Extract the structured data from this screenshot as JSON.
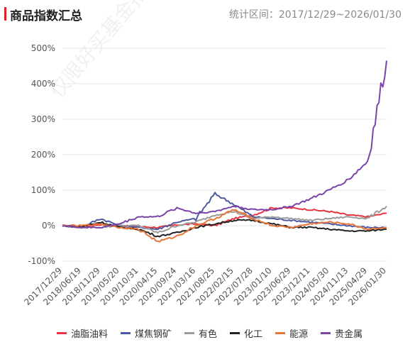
{
  "header": {
    "title": "商品指数汇总",
    "range": "统计区间：2017/12/29~2026/01/30"
  },
  "watermark": "仅限好买基金指定接收人使",
  "chart_data": {
    "type": "line",
    "ylim": [
      -100,
      500
    ],
    "yticks": [
      -100,
      0,
      100,
      200,
      300,
      400,
      500
    ],
    "ytick_labels": [
      "-100%",
      "0%",
      "100%",
      "200%",
      "300%",
      "400%",
      "500%"
    ],
    "xtick_labels": [
      "2017/12/29",
      "2018/06/19",
      "2018/11/29",
      "2019/05/20",
      "2019/10/31",
      "2020/04/15",
      "2020/09/24",
      "2021/03/16",
      "2021/08/25",
      "2022/02/15",
      "2022/07/28",
      "2023/01/10",
      "2023/06/29",
      "2023/12/11",
      "2024/05/30",
      "2024/11/13",
      "2025/04/29",
      "2026/01/30"
    ],
    "grid": true,
    "legend_position": "bottom",
    "series": [
      {
        "name": "油脂油料",
        "color": "#e8343e",
        "values": [
          0,
          -2,
          3,
          0,
          -3,
          -5,
          2,
          5,
          0,
          20,
          30,
          50,
          50,
          45,
          40,
          30,
          25,
          35
        ]
      },
      {
        "name": "煤焦钢矿",
        "color": "#4e5aa0",
        "values": [
          0,
          -5,
          20,
          0,
          -5,
          -10,
          10,
          20,
          90,
          60,
          25,
          20,
          15,
          10,
          5,
          0,
          -5,
          -5
        ]
      },
      {
        "name": "有色",
        "color": "#9b9b9b",
        "values": [
          0,
          -5,
          -5,
          0,
          0,
          -20,
          0,
          10,
          30,
          40,
          20,
          25,
          20,
          15,
          20,
          25,
          20,
          55
        ]
      },
      {
        "name": "化工",
        "color": "#222222",
        "values": [
          0,
          -3,
          10,
          -5,
          -10,
          -30,
          -20,
          -5,
          5,
          15,
          15,
          5,
          -5,
          -5,
          -10,
          -15,
          -15,
          -10
        ]
      },
      {
        "name": "能源",
        "color": "#e8763a",
        "values": [
          0,
          0,
          5,
          -5,
          -10,
          -45,
          -30,
          0,
          20,
          45,
          20,
          0,
          -5,
          5,
          10,
          5,
          -10,
          -5
        ]
      },
      {
        "name": "贵金属",
        "color": "#7b44a8",
        "values": [
          0,
          -5,
          -5,
          5,
          25,
          25,
          50,
          35,
          40,
          55,
          45,
          45,
          55,
          75,
          100,
          130,
          180,
          465
        ]
      }
    ]
  }
}
